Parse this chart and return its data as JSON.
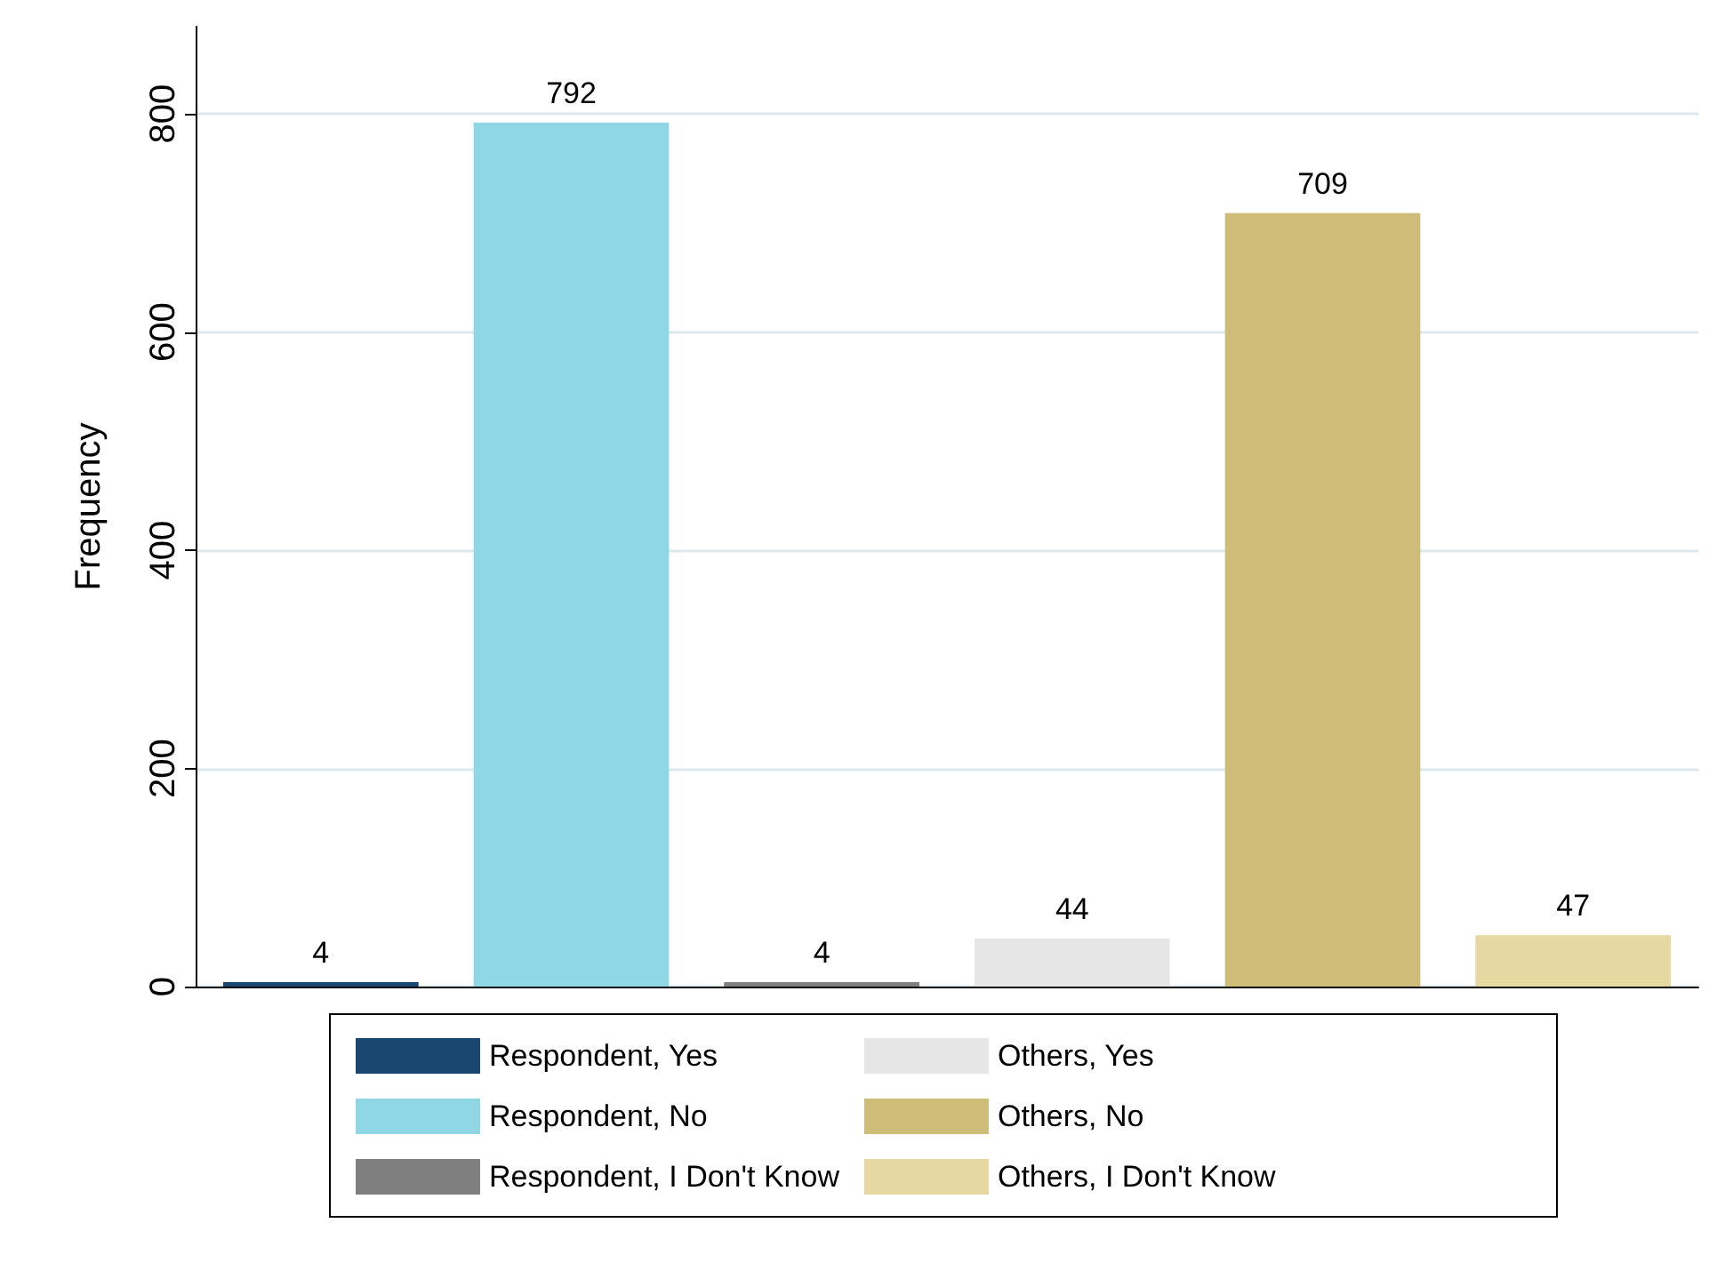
{
  "chart_data": {
    "type": "bar",
    "ylabel": "Frequency",
    "categories": [
      null,
      null,
      null,
      null,
      null,
      null
    ],
    "series": [
      {
        "name": "Respondent, Yes",
        "color": "#1a476f",
        "values": [
          4,
          null,
          null,
          null,
          null,
          null
        ]
      },
      {
        "name": "Respondent, No",
        "color": "#90d7e6",
        "values": [
          null,
          792,
          null,
          null,
          null,
          null
        ]
      },
      {
        "name": "Respondent, I Don't Know",
        "color": "#7f7f7f",
        "values": [
          null,
          null,
          4,
          null,
          null,
          null
        ]
      },
      {
        "name": "Others, Yes",
        "color": "#e6e6e6",
        "values": [
          null,
          null,
          null,
          44,
          null,
          null
        ]
      },
      {
        "name": "Others, No",
        "color": "#cdbd79",
        "values": [
          null,
          null,
          null,
          null,
          709,
          null
        ]
      },
      {
        "name": "Others, I Don't Know",
        "color": "#e6d8a0",
        "values": [
          null,
          null,
          null,
          null,
          null,
          47
        ]
      }
    ],
    "ylim": [
      0,
      880
    ],
    "yticks": [
      0,
      200,
      400,
      600,
      800
    ],
    "grid": "y",
    "legend": "bottom",
    "data_labels": true
  }
}
